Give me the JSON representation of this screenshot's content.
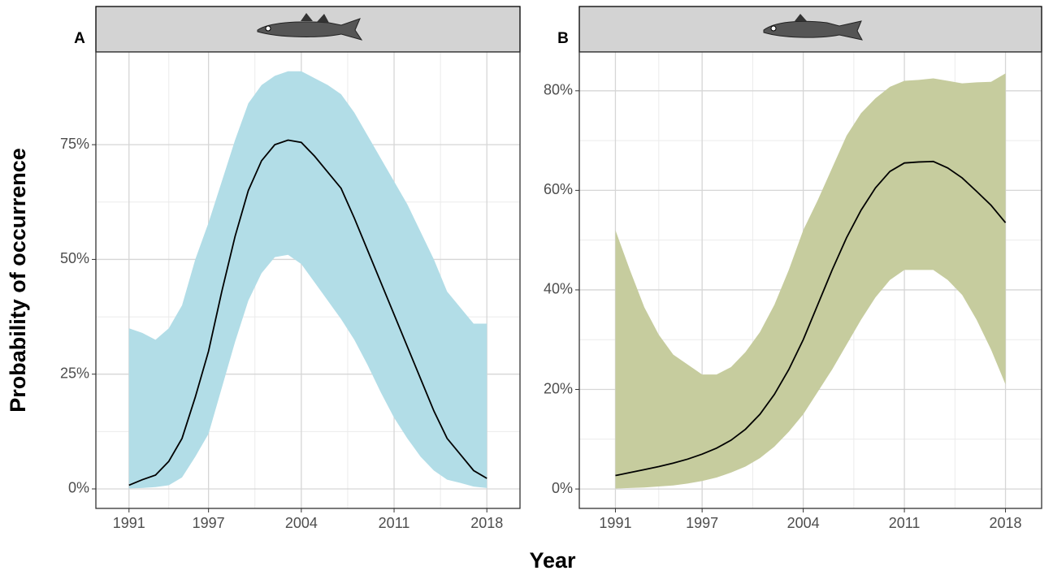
{
  "xlabel": "Year",
  "ylabel": "Probability of occurrence",
  "chart_data": [
    {
      "type": "ribbon-line",
      "panel_label": "A",
      "x": [
        1991,
        1992,
        1993,
        1994,
        1995,
        1996,
        1997,
        1998,
        1999,
        2000,
        2001,
        2002,
        2003,
        2004,
        2005,
        2006,
        2007,
        2008,
        2009,
        2010,
        2011,
        2012,
        2013,
        2014,
        2015,
        2016,
        2017,
        2018
      ],
      "values": [
        0.8,
        2,
        3,
        6,
        11,
        20,
        30,
        43,
        55,
        65,
        71.5,
        75,
        76,
        75.5,
        72.5,
        69,
        65.5,
        59,
        52,
        45,
        38,
        31,
        24,
        17,
        11,
        7.5,
        4,
        2.3
      ],
      "upper": [
        35,
        34,
        32.5,
        35,
        40,
        50,
        58,
        67,
        76,
        84,
        88,
        90,
        91,
        91,
        89.5,
        88,
        86,
        82,
        77,
        72,
        67,
        62,
        56,
        50,
        43,
        39.5,
        36,
        36
      ],
      "lower": [
        0.1,
        0.2,
        0.4,
        0.8,
        2.5,
        7,
        12,
        22,
        32,
        41,
        47,
        50.5,
        51,
        49,
        45,
        41,
        37,
        32.5,
        27,
        21,
        15.5,
        11,
        7,
        4,
        2,
        1.3,
        0.5,
        0.2
      ],
      "band_color": "#b2dde7",
      "line_color": "#000000",
      "xlim": [
        1988.5,
        2020.5
      ],
      "xticks": [
        1991,
        1997,
        2004,
        2011,
        2018
      ],
      "ylim": [
        -4.25,
        95.2
      ],
      "yticks": [
        {
          "value": 0,
          "label": "0%"
        },
        {
          "value": 25,
          "label": "25%"
        },
        {
          "value": 50,
          "label": "50%"
        },
        {
          "value": 75,
          "label": "75%"
        }
      ],
      "grid": true
    },
    {
      "type": "ribbon-line",
      "panel_label": "B",
      "x": [
        1991,
        1992,
        1993,
        1994,
        1995,
        1996,
        1997,
        1998,
        1999,
        2000,
        2001,
        2002,
        2003,
        2004,
        2005,
        2006,
        2007,
        2008,
        2009,
        2010,
        2011,
        2012,
        2013,
        2014,
        2015,
        2016,
        2017,
        2018
      ],
      "values": [
        2.7,
        3.3,
        3.9,
        4.5,
        5.2,
        6,
        7,
        8.2,
        9.8,
        12,
        15,
        19,
        24,
        30,
        37,
        44,
        50.5,
        56,
        60.5,
        63.8,
        65.5,
        65.7,
        65.8,
        64.5,
        62.5,
        59.8,
        57,
        53.5
      ],
      "upper": [
        52,
        44,
        36.5,
        31,
        27,
        25,
        23,
        23,
        24.5,
        27.5,
        31.5,
        37,
        44,
        52,
        58,
        64.5,
        71,
        75.5,
        78.5,
        80.8,
        82,
        82.2,
        82.5,
        82,
        81.5,
        81.7,
        81.8,
        83.5
      ],
      "lower": [
        0.1,
        0.2,
        0.3,
        0.5,
        0.7,
        1.1,
        1.6,
        2.3,
        3.3,
        4.5,
        6.2,
        8.5,
        11.5,
        15,
        19.5,
        24,
        29,
        34,
        38.5,
        42,
        44,
        44,
        44,
        42,
        39,
        34,
        28,
        21
      ],
      "band_color": "#c6cc9e",
      "line_color": "#000000",
      "xlim": [
        1988.5,
        2020.5
      ],
      "xticks": [
        1991,
        1997,
        2004,
        2011,
        2018
      ],
      "ylim": [
        -3.9,
        87.8
      ],
      "yticks": [
        {
          "value": 0,
          "label": "0%"
        },
        {
          "value": 20,
          "label": "20%"
        },
        {
          "value": 40,
          "label": "40%"
        },
        {
          "value": 60,
          "label": "60%"
        },
        {
          "value": 80,
          "label": "80%"
        }
      ],
      "grid": true
    }
  ]
}
